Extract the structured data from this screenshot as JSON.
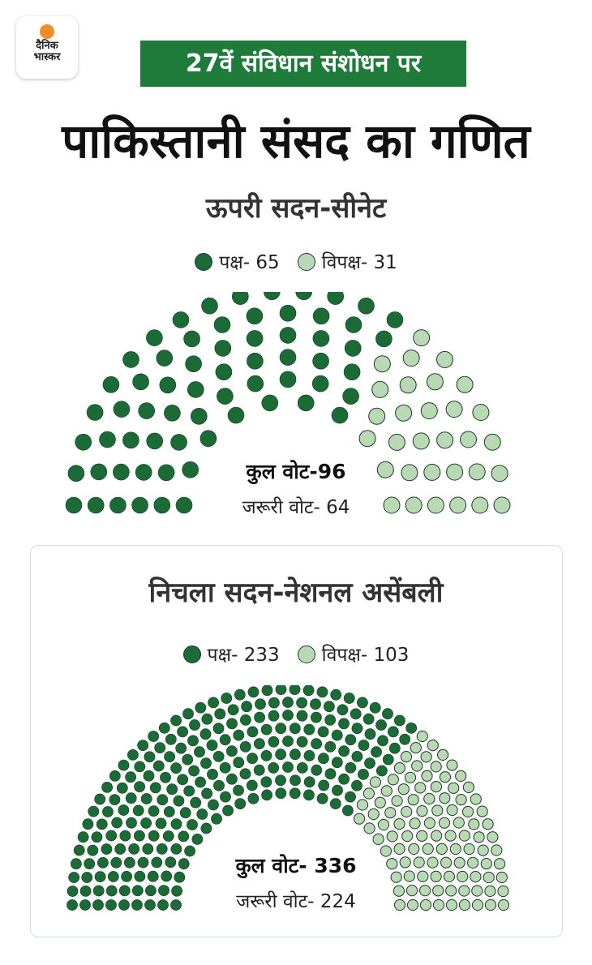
{
  "logo": {
    "line1": "दैनिक",
    "line2": "भास्कर"
  },
  "banner": "27वें संविधान संशोधन पर",
  "title": "पाकिस्तानी संसद का गणित",
  "colors": {
    "ruling": "#1a6b35",
    "opposition": "#b9d8b4",
    "banner": "#1e7b3a",
    "logo_sun": "#f28c28"
  },
  "chart_data": [
    {
      "type": "parliament",
      "title": "ऊपरी सदन-सीनेट",
      "legend": [
        {
          "label": "पक्ष- 65"
        },
        {
          "label": "विपक्ष- 31"
        }
      ],
      "series": [
        {
          "name": "पक्ष",
          "values": [
            65
          ]
        },
        {
          "name": "विपक्ष",
          "values": [
            31
          ]
        }
      ],
      "total_label": "कुल वोट-96",
      "required_label": "जरूरी वोट- 64",
      "total": 96,
      "required": 64,
      "rows": 6
    },
    {
      "type": "parliament",
      "title": "निचला सदन-नेशनल असेंबली",
      "legend": [
        {
          "label": "पक्ष- 233"
        },
        {
          "label": "विपक्ष- 103"
        }
      ],
      "series": [
        {
          "name": "पक्ष",
          "values": [
            233
          ]
        },
        {
          "name": "विपक्ष",
          "values": [
            103
          ]
        }
      ],
      "total_label": "कुल वोट- 336",
      "required_label": "जरूरी वोट- 224",
      "total": 336,
      "required": 224,
      "rows": 9
    }
  ]
}
